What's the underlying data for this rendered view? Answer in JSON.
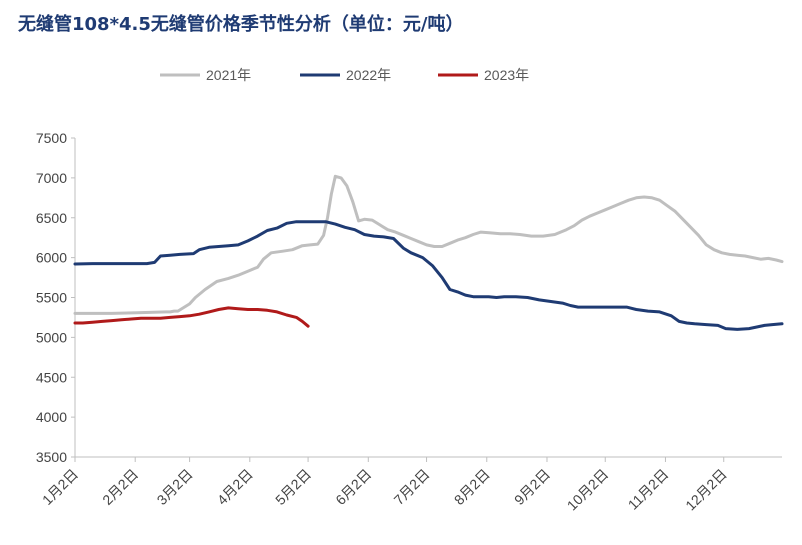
{
  "chart_data": {
    "type": "line",
    "title": "无缝管108*4.5无缝管价格季节性分析（单位：元/吨）",
    "xlabel": "",
    "ylabel": "",
    "ylim": [
      3500,
      7500
    ],
    "yticks": [
      3500,
      4000,
      4500,
      5000,
      5500,
      6000,
      6500,
      7000,
      7500
    ],
    "xlim": [
      1,
      365
    ],
    "xticks": [
      {
        "day": 1,
        "label": "1月2日"
      },
      {
        "day": 32,
        "label": "2月2日"
      },
      {
        "day": 60,
        "label": "3月2日"
      },
      {
        "day": 91,
        "label": "4月2日"
      },
      {
        "day": 121,
        "label": "5月2日"
      },
      {
        "day": 152,
        "label": "6月2日"
      },
      {
        "day": 182,
        "label": "7月2日"
      },
      {
        "day": 213,
        "label": "8月2日"
      },
      {
        "day": 244,
        "label": "9月2日"
      },
      {
        "day": 274,
        "label": "10月2日"
      },
      {
        "day": 305,
        "label": "11月2日"
      },
      {
        "day": 335,
        "label": "12月2日"
      }
    ],
    "legend_position": "top",
    "series": [
      {
        "name": "2021年",
        "color": "#bfbfbf",
        "points": [
          [
            1,
            5300
          ],
          [
            10,
            5300
          ],
          [
            20,
            5300
          ],
          [
            33,
            5310
          ],
          [
            48,
            5320
          ],
          [
            50,
            5320
          ],
          [
            52,
            5330
          ],
          [
            54,
            5330
          ],
          [
            60,
            5420
          ],
          [
            63,
            5500
          ],
          [
            68,
            5600
          ],
          [
            74,
            5700
          ],
          [
            80,
            5740
          ],
          [
            85,
            5780
          ],
          [
            90,
            5830
          ],
          [
            95,
            5880
          ],
          [
            98,
            5980
          ],
          [
            102,
            6060
          ],
          [
            108,
            6080
          ],
          [
            113,
            6100
          ],
          [
            118,
            6150
          ],
          [
            122,
            6160
          ],
          [
            126,
            6170
          ],
          [
            129,
            6280
          ],
          [
            131,
            6500
          ],
          [
            133,
            6800
          ],
          [
            135,
            7020
          ],
          [
            138,
            7000
          ],
          [
            141,
            6900
          ],
          [
            144,
            6700
          ],
          [
            147,
            6460
          ],
          [
            150,
            6480
          ],
          [
            154,
            6470
          ],
          [
            158,
            6410
          ],
          [
            162,
            6350
          ],
          [
            166,
            6320
          ],
          [
            170,
            6280
          ],
          [
            174,
            6240
          ],
          [
            178,
            6200
          ],
          [
            182,
            6160
          ],
          [
            186,
            6140
          ],
          [
            190,
            6140
          ],
          [
            194,
            6180
          ],
          [
            198,
            6220
          ],
          [
            202,
            6250
          ],
          [
            206,
            6290
          ],
          [
            210,
            6320
          ],
          [
            215,
            6310
          ],
          [
            220,
            6300
          ],
          [
            225,
            6300
          ],
          [
            230,
            6290
          ],
          [
            236,
            6270
          ],
          [
            242,
            6270
          ],
          [
            248,
            6290
          ],
          [
            254,
            6350
          ],
          [
            258,
            6400
          ],
          [
            262,
            6470
          ],
          [
            266,
            6520
          ],
          [
            270,
            6560
          ],
          [
            274,
            6600
          ],
          [
            278,
            6640
          ],
          [
            282,
            6680
          ],
          [
            286,
            6720
          ],
          [
            290,
            6750
          ],
          [
            294,
            6760
          ],
          [
            298,
            6750
          ],
          [
            302,
            6720
          ],
          [
            306,
            6650
          ],
          [
            310,
            6580
          ],
          [
            314,
            6480
          ],
          [
            318,
            6380
          ],
          [
            322,
            6280
          ],
          [
            326,
            6160
          ],
          [
            330,
            6100
          ],
          [
            334,
            6060
          ],
          [
            338,
            6040
          ],
          [
            342,
            6030
          ],
          [
            346,
            6020
          ],
          [
            350,
            6000
          ],
          [
            354,
            5980
          ],
          [
            358,
            5990
          ],
          [
            362,
            5970
          ],
          [
            365,
            5950
          ]
        ]
      },
      {
        "name": "2022年",
        "color": "#1f3b73",
        "points": [
          [
            1,
            5920
          ],
          [
            10,
            5925
          ],
          [
            20,
            5925
          ],
          [
            30,
            5925
          ],
          [
            38,
            5925
          ],
          [
            42,
            5940
          ],
          [
            45,
            6020
          ],
          [
            50,
            6030
          ],
          [
            55,
            6040
          ],
          [
            62,
            6050
          ],
          [
            65,
            6100
          ],
          [
            70,
            6130
          ],
          [
            75,
            6140
          ],
          [
            80,
            6150
          ],
          [
            85,
            6160
          ],
          [
            90,
            6210
          ],
          [
            95,
            6270
          ],
          [
            100,
            6340
          ],
          [
            105,
            6370
          ],
          [
            110,
            6430
          ],
          [
            115,
            6450
          ],
          [
            120,
            6450
          ],
          [
            125,
            6450
          ],
          [
            130,
            6450
          ],
          [
            135,
            6420
          ],
          [
            140,
            6380
          ],
          [
            145,
            6350
          ],
          [
            150,
            6290
          ],
          [
            155,
            6270
          ],
          [
            160,
            6260
          ],
          [
            165,
            6240
          ],
          [
            170,
            6120
          ],
          [
            174,
            6060
          ],
          [
            180,
            6000
          ],
          [
            185,
            5900
          ],
          [
            190,
            5750
          ],
          [
            194,
            5600
          ],
          [
            198,
            5570
          ],
          [
            202,
            5530
          ],
          [
            206,
            5510
          ],
          [
            210,
            5510
          ],
          [
            214,
            5510
          ],
          [
            218,
            5500
          ],
          [
            222,
            5510
          ],
          [
            228,
            5510
          ],
          [
            234,
            5500
          ],
          [
            240,
            5470
          ],
          [
            246,
            5450
          ],
          [
            252,
            5430
          ],
          [
            256,
            5400
          ],
          [
            260,
            5380
          ],
          [
            268,
            5380
          ],
          [
            276,
            5380
          ],
          [
            285,
            5380
          ],
          [
            290,
            5350
          ],
          [
            296,
            5330
          ],
          [
            302,
            5320
          ],
          [
            308,
            5270
          ],
          [
            312,
            5200
          ],
          [
            316,
            5180
          ],
          [
            320,
            5170
          ],
          [
            326,
            5160
          ],
          [
            332,
            5150
          ],
          [
            336,
            5110
          ],
          [
            342,
            5100
          ],
          [
            348,
            5110
          ],
          [
            352,
            5130
          ],
          [
            356,
            5150
          ],
          [
            360,
            5160
          ],
          [
            365,
            5170
          ]
        ]
      },
      {
        "name": "2023年",
        "color": "#b01a1a",
        "points": [
          [
            1,
            5180
          ],
          [
            5,
            5180
          ],
          [
            10,
            5190
          ],
          [
            15,
            5200
          ],
          [
            20,
            5210
          ],
          [
            25,
            5220
          ],
          [
            30,
            5230
          ],
          [
            35,
            5240
          ],
          [
            40,
            5240
          ],
          [
            45,
            5240
          ],
          [
            50,
            5250
          ],
          [
            55,
            5260
          ],
          [
            60,
            5270
          ],
          [
            65,
            5290
          ],
          [
            70,
            5320
          ],
          [
            75,
            5350
          ],
          [
            80,
            5370
          ],
          [
            85,
            5360
          ],
          [
            90,
            5350
          ],
          [
            95,
            5350
          ],
          [
            100,
            5340
          ],
          [
            105,
            5320
          ],
          [
            110,
            5280
          ],
          [
            115,
            5250
          ],
          [
            118,
            5200
          ],
          [
            121,
            5140
          ]
        ]
      }
    ]
  }
}
